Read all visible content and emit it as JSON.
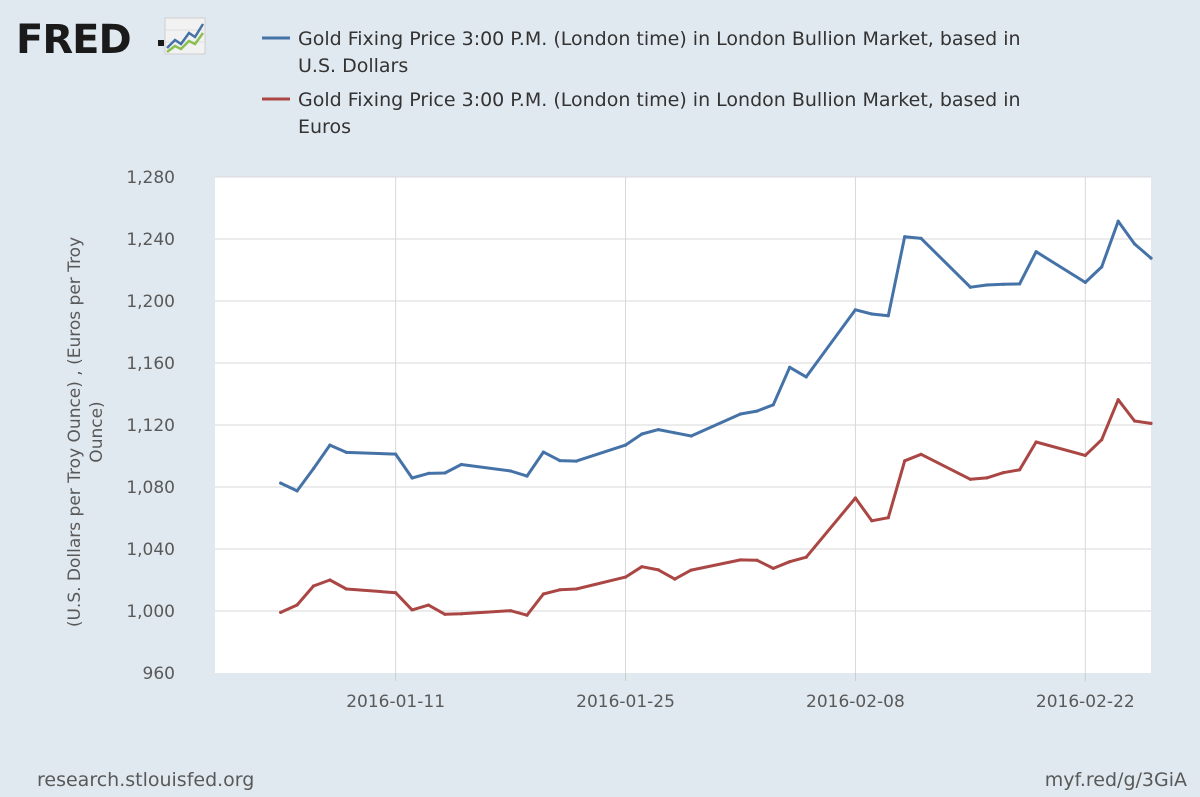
{
  "brand": {
    "logo_text": "FRED",
    "logo_icon": "trend-chart-icon"
  },
  "footer": {
    "source": "research.stlouisfed.org",
    "short_url": "myf.red/g/3GiA"
  },
  "colors": {
    "usd": "#4572a7",
    "eur": "#aa4643",
    "grid": "#d8d8d8",
    "plot_bg": "#ffffff"
  },
  "chart_data": {
    "type": "line",
    "title": "",
    "ylabel_line1": "(U.S. Dollars per Troy Ounce) , (Euros per Troy",
    "ylabel_line2": "Ounce)",
    "xlabel": "",
    "ylim": [
      960,
      1280
    ],
    "yticks": [
      960,
      1000,
      1040,
      1080,
      1120,
      1160,
      1200,
      1240,
      1280
    ],
    "ytick_labels": [
      "960",
      "1,000",
      "1,040",
      "1,080",
      "1,120",
      "1,160",
      "1,200",
      "1,240",
      "1,280"
    ],
    "xlim": [
      "2015-12-31",
      "2016-02-26"
    ],
    "xticks": [
      "2016-01-11",
      "2016-01-25",
      "2016-02-08",
      "2016-02-22"
    ],
    "grid": true,
    "legend_position": "top",
    "series": [
      {
        "name": "Gold Fixing Price 3:00 P.M. (London time) in London Bullion Market, based in U.S. Dollars",
        "legend_line1": "Gold Fixing Price 3:00 P.M. (London time) in London Bullion Market, based in",
        "legend_line2": "U.S. Dollars",
        "color": "#4572a7",
        "points": [
          [
            "2016-01-04",
            1082.5
          ],
          [
            "2016-01-05",
            1077.5
          ],
          [
            "2016-01-06",
            1091.9
          ],
          [
            "2016-01-07",
            1107.0
          ],
          [
            "2016-01-08",
            1102.3
          ],
          [
            "2016-01-11",
            1101.2
          ],
          [
            "2016-01-12",
            1085.8
          ],
          [
            "2016-01-13",
            1088.8
          ],
          [
            "2016-01-14",
            1089.0
          ],
          [
            "2016-01-15",
            1094.5
          ],
          [
            "2016-01-18",
            1090.3
          ],
          [
            "2016-01-19",
            1087.0
          ],
          [
            "2016-01-20",
            1102.5
          ],
          [
            "2016-01-21",
            1097.0
          ],
          [
            "2016-01-22",
            1096.7
          ],
          [
            "2016-01-25",
            1107.0
          ],
          [
            "2016-01-26",
            1114.2
          ],
          [
            "2016-01-27",
            1117.0
          ],
          [
            "2016-01-28",
            1115.0
          ],
          [
            "2016-01-29",
            1112.9
          ],
          [
            "2016-02-01",
            1127.1
          ],
          [
            "2016-02-02",
            1129.0
          ],
          [
            "2016-02-03",
            1133.0
          ],
          [
            "2016-02-04",
            1157.2
          ],
          [
            "2016-02-05",
            1151.0
          ],
          [
            "2016-02-08",
            1194.3
          ],
          [
            "2016-02-09",
            1191.6
          ],
          [
            "2016-02-10",
            1190.5
          ],
          [
            "2016-02-11",
            1241.5
          ],
          [
            "2016-02-12",
            1240.4
          ],
          [
            "2016-02-15",
            1208.9
          ],
          [
            "2016-02-16",
            1210.3
          ],
          [
            "2016-02-17",
            1210.8
          ],
          [
            "2016-02-18",
            1211.0
          ],
          [
            "2016-02-19",
            1231.8
          ],
          [
            "2016-02-22",
            1212.0
          ],
          [
            "2016-02-23",
            1222.0
          ],
          [
            "2016-02-24",
            1251.5
          ],
          [
            "2016-02-25",
            1236.8
          ],
          [
            "2016-02-26",
            1227.7
          ]
        ]
      },
      {
        "name": "Gold Fixing Price 3:00 P.M. (London time) in London Bullion Market, based in Euros",
        "legend_line1": "Gold Fixing Price 3:00 P.M. (London time) in London Bullion Market, based in",
        "legend_line2": "Euros",
        "color": "#aa4643",
        "points": [
          [
            "2016-01-04",
            999.1
          ],
          [
            "2016-01-05",
            1003.9
          ],
          [
            "2016-01-06",
            1016.1
          ],
          [
            "2016-01-07",
            1020.0
          ],
          [
            "2016-01-08",
            1014.2
          ],
          [
            "2016-01-11",
            1011.8
          ],
          [
            "2016-01-12",
            1000.7
          ],
          [
            "2016-01-13",
            1003.8
          ],
          [
            "2016-01-14",
            997.9
          ],
          [
            "2016-01-15",
            998.2
          ],
          [
            "2016-01-18",
            1000.2
          ],
          [
            "2016-01-19",
            997.3
          ],
          [
            "2016-01-20",
            1011.0
          ],
          [
            "2016-01-21",
            1013.7
          ],
          [
            "2016-01-22",
            1014.2
          ],
          [
            "2016-01-25",
            1021.9
          ],
          [
            "2016-01-26",
            1028.6
          ],
          [
            "2016-01-27",
            1026.5
          ],
          [
            "2016-01-28",
            1020.6
          ],
          [
            "2016-01-29",
            1026.4
          ],
          [
            "2016-02-01",
            1033.0
          ],
          [
            "2016-02-02",
            1032.8
          ],
          [
            "2016-02-03",
            1027.5
          ],
          [
            "2016-02-04",
            1031.8
          ],
          [
            "2016-02-05",
            1034.7
          ],
          [
            "2016-02-08",
            1072.9
          ],
          [
            "2016-02-09",
            1058.2
          ],
          [
            "2016-02-10",
            1060.2
          ],
          [
            "2016-02-11",
            1096.9
          ],
          [
            "2016-02-12",
            1101.1
          ],
          [
            "2016-02-15",
            1085.0
          ],
          [
            "2016-02-16",
            1085.9
          ],
          [
            "2016-02-17",
            1089.2
          ],
          [
            "2016-02-18",
            1091.1
          ],
          [
            "2016-02-19",
            1109.0
          ],
          [
            "2016-02-22",
            1100.4
          ],
          [
            "2016-02-23",
            1110.5
          ],
          [
            "2016-02-24",
            1136.3
          ],
          [
            "2016-02-25",
            1122.6
          ],
          [
            "2016-02-26",
            1121.0
          ]
        ]
      }
    ]
  }
}
